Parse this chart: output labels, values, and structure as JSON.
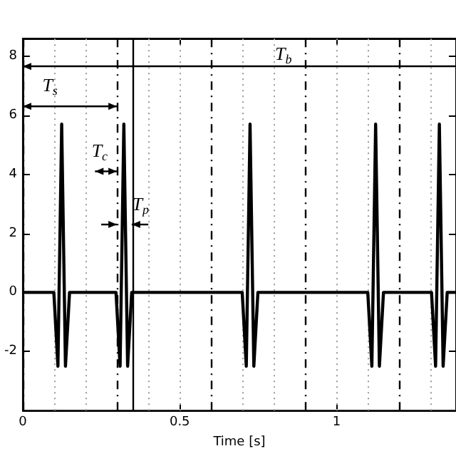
{
  "chart_data": {
    "type": "line",
    "xlabel": "Time [s]",
    "x": [
      0,
      0.099,
      0.112,
      0.124,
      0.136,
      0.149,
      0.297,
      0.31,
      0.322,
      0.334,
      0.347,
      0.699,
      0.712,
      0.724,
      0.736,
      0.749,
      1.099,
      1.112,
      1.124,
      1.136,
      1.149,
      1.302,
      1.315,
      1.327,
      1.339,
      1.352,
      1.38
    ],
    "series": [
      {
        "color": "#000000",
        "values": [
          0,
          0,
          -2.5,
          5.7,
          -2.5,
          0,
          0,
          -2.5,
          5.7,
          -2.5,
          0,
          0,
          -2.5,
          5.7,
          -2.5,
          0,
          0,
          -2.5,
          5.7,
          -2.5,
          0,
          0,
          -2.5,
          5.7,
          -2.5,
          0,
          0
        ]
      }
    ],
    "xlim": [
      0,
      1.38
    ],
    "ylim": [
      -4,
      8.6
    ],
    "xticks": [
      0,
      0.5,
      1
    ],
    "yticks": [
      -2,
      0,
      2,
      4,
      6,
      8
    ],
    "grid": false,
    "marker": "none",
    "line_style": "solid",
    "ref_lines": [
      {
        "axis": "y",
        "value": 7.65,
        "color": "#000000",
        "line_style": "solid"
      },
      {
        "axis": "x",
        "value": 0,
        "color": "#000000",
        "line_style": "dashed"
      },
      {
        "axis": "x",
        "value": 0.3,
        "color": "#000000",
        "line_style": "dashed"
      },
      {
        "axis": "x",
        "value": 0.6,
        "color": "#000000",
        "line_style": "dashed"
      },
      {
        "axis": "x",
        "value": 0.9,
        "color": "#000000",
        "line_style": "dashed"
      },
      {
        "axis": "x",
        "value": 1.2,
        "color": "#000000",
        "line_style": "dashed"
      },
      {
        "axis": "x",
        "value": 0.347,
        "color": "#000000",
        "line_style": "solid"
      },
      {
        "axis": "x",
        "value": 0.1,
        "color": "#999999",
        "line_style": "dotted"
      },
      {
        "axis": "x",
        "value": 0.2,
        "color": "#999999",
        "line_style": "dotted"
      },
      {
        "axis": "x",
        "value": 0.4,
        "color": "#999999",
        "line_style": "dotted"
      },
      {
        "axis": "x",
        "value": 0.5,
        "color": "#999999",
        "line_style": "dotted"
      },
      {
        "axis": "x",
        "value": 0.7,
        "color": "#999999",
        "line_style": "dotted"
      },
      {
        "axis": "x",
        "value": 0.8,
        "color": "#999999",
        "line_style": "dotted"
      },
      {
        "axis": "x",
        "value": 1.0,
        "color": "#999999",
        "line_style": "dotted"
      },
      {
        "axis": "x",
        "value": 1.1,
        "color": "#999999",
        "line_style": "dotted"
      },
      {
        "axis": "x",
        "value": 1.3,
        "color": "#999999",
        "line_style": "dotted"
      }
    ],
    "annotations": [
      "T$_{b}$",
      {
        "text": "T$_{s}$",
        "x": 0.3,
        "y": 6.3
      },
      "T$_{c}$",
      "T$_{p}$"
    ]
  }
}
